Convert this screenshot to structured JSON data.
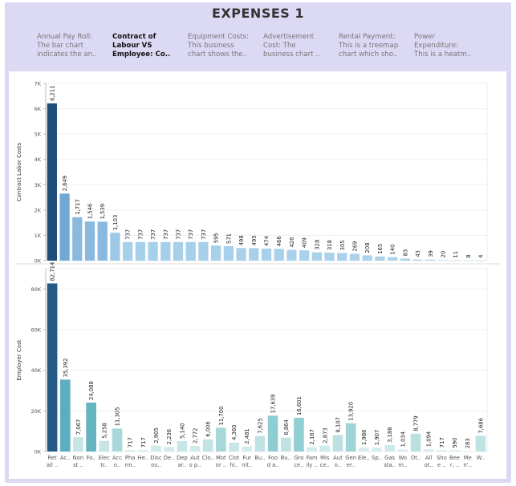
{
  "page": {
    "title": "EXPENSES 1"
  },
  "tabs": [
    {
      "lines": [
        "Annual Pay Roll:",
        "The bar chart",
        "indicates the an.."
      ],
      "active": false
    },
    {
      "lines": [
        "Contract of",
        "Labour VS",
        "Employee:   Co.."
      ],
      "active": true
    },
    {
      "lines": [
        "Equipment Costs:",
        "This business",
        "chart shows the.."
      ],
      "active": false
    },
    {
      "lines": [
        "Advertisement",
        "Cost:        The",
        "business chart .."
      ],
      "active": false
    },
    {
      "lines": [
        "Rental Payment:",
        "This is a treemap",
        "chart which sho.."
      ],
      "active": false
    },
    {
      "lines": [
        "Power",
        "Expenditure:",
        "This is a heatm.."
      ],
      "active": false
    }
  ],
  "chart_data": [
    {
      "type": "bar",
      "ylabel": "Contract Labor Costs",
      "ylim": [
        0,
        7000
      ],
      "yticks": [
        "0K",
        "1K",
        "2K",
        "3K",
        "4K",
        "5K",
        "6K",
        "7K"
      ],
      "values": [
        6211,
        2649,
        1717,
        1546,
        1539,
        1103,
        737,
        737,
        737,
        737,
        737,
        737,
        737,
        595,
        571,
        498,
        495,
        474,
        466,
        426,
        409,
        328,
        318,
        305,
        269,
        208,
        165,
        140,
        83,
        43,
        39,
        20,
        11,
        8,
        4
      ],
      "labels": [
        "6,211",
        "2,649",
        "1,717",
        "1,546",
        "1,539",
        "1,103",
        "737",
        "737",
        "737",
        "737",
        "737",
        "737",
        "737",
        "595",
        "571",
        "498",
        "495",
        "474",
        "466",
        "426",
        "409",
        "328",
        "318",
        "305",
        "269",
        "208",
        "165",
        "140",
        "83",
        "43",
        "39",
        "20",
        "11",
        "8",
        "4"
      ],
      "colors": [
        "#1f4e79",
        "#6fa8d4",
        "#8ab9df",
        "#8ab9df",
        "#8ab9df",
        "#9ec8e6",
        "#a6cfea",
        "#a6cfea",
        "#a6cfea",
        "#a6cfea",
        "#a6cfea",
        "#a6cfea",
        "#a6cfea",
        "#a8d0eb",
        "#a8d0eb",
        "#a8d0eb",
        "#a8d0eb",
        "#a8d0eb",
        "#a8d0eb",
        "#aad1ec",
        "#aad1ec",
        "#aad1ec",
        "#aad1ec",
        "#aad1ec",
        "#acd2ec",
        "#acd2ec",
        "#acd2ec",
        "#acd2ec",
        "#acd2ec",
        "#acd2ec",
        "#acd2ec",
        "#acd2ec",
        "#acd2ec",
        "#acd2ec",
        "#acd2ec"
      ]
    },
    {
      "type": "bar",
      "ylabel": "Employer Cost",
      "ylim": [
        0,
        90000
      ],
      "yticks": [
        "0K",
        "20K",
        "40K",
        "60K",
        "80K"
      ],
      "ytick_values": [
        0,
        20000,
        40000,
        60000,
        80000
      ],
      "values": [
        82714,
        35392,
        7067,
        24088,
        5258,
        11305,
        717,
        717,
        2905,
        2236,
        5140,
        2772,
        6006,
        11700,
        4360,
        2481,
        7625,
        17639,
        6864,
        16601,
        2167,
        2873,
        8107,
        13920,
        1986,
        1907,
        3188,
        1034,
        8779,
        1094,
        717,
        590,
        283,
        7686
      ],
      "labels": [
        "82,714",
        "35,392",
        "7,067",
        "24,088",
        "5,258",
        "11,305",
        "717",
        "717",
        "2,905",
        "2,236",
        "5,140",
        "2,772",
        "6,006",
        "11,700",
        "4,360",
        "2,481",
        "7,625",
        "17,639",
        "6,864",
        "16,601",
        "2,167",
        "2,873",
        "8,107",
        "13,920",
        "1,986",
        "1,907",
        "3,188",
        "1,034",
        "8,779",
        "1,094",
        "717",
        "590",
        "283",
        "7,686"
      ],
      "colors": [
        "#255a84",
        "#5aaebf",
        "#c6e5e6",
        "#66b3c2",
        "#c7e5e7",
        "#a9d8da",
        "#d6eeee",
        "#d6eeee",
        "#d0ebeb",
        "#d2ecec",
        "#c9e6e7",
        "#d0ebeb",
        "#c2e3e4",
        "#a6d7d9",
        "#c8e6e6",
        "#d0ebeb",
        "#bfe2e3",
        "#8ecdd1",
        "#c1e2e3",
        "#92cfd2",
        "#d2ecec",
        "#cfeaea",
        "#bde1e2",
        "#9fd4d6",
        "#d4eded",
        "#d4eded",
        "#cde9e9",
        "#d5eded",
        "#bbe0e1",
        "#d5eded",
        "#d6eeee",
        "#d6eeee",
        "#d7eeee",
        "#bfe2e3"
      ],
      "categories": [
        [
          "Ret",
          "ail .."
        ],
        [
          "Ac.."
        ],
        [
          "Non",
          "st .."
        ],
        [
          "Fo.."
        ],
        [
          "Elec",
          "tr.."
        ],
        [
          "Acc",
          "o.."
        ],
        [
          "Pha",
          "rm.."
        ],
        [
          "He.."
        ],
        [
          "Disc",
          "ou.."
        ],
        [
          "De..",
          ""
        ],
        [
          "Dep",
          "ar.."
        ],
        [
          "Aut",
          "o p.."
        ],
        [
          "Clo.."
        ],
        [
          "Mot",
          "or .."
        ],
        [
          "Clot",
          "hi.."
        ],
        [
          "Fur",
          "nit.."
        ],
        [
          "Bu.."
        ],
        [
          "Foo",
          "d a.."
        ],
        [
          "Bu.."
        ],
        [
          "Gro",
          "ce.."
        ],
        [
          "Fam",
          "ily .."
        ],
        [
          "Mis",
          "ce.."
        ],
        [
          "Aut",
          "o.."
        ],
        [
          "Gen",
          "er.."
        ],
        [
          "Ele.."
        ],
        [
          "Sp.."
        ],
        [
          "Gas",
          "sta.."
        ],
        [
          "Wo",
          "m.."
        ],
        [
          "Ot.."
        ],
        [
          "All",
          "ot.."
        ],
        [
          "Sho",
          "e .."
        ],
        [
          "Bee",
          "r, .."
        ],
        [
          "Me",
          "n'.."
        ],
        [
          "W.."
        ]
      ]
    }
  ]
}
